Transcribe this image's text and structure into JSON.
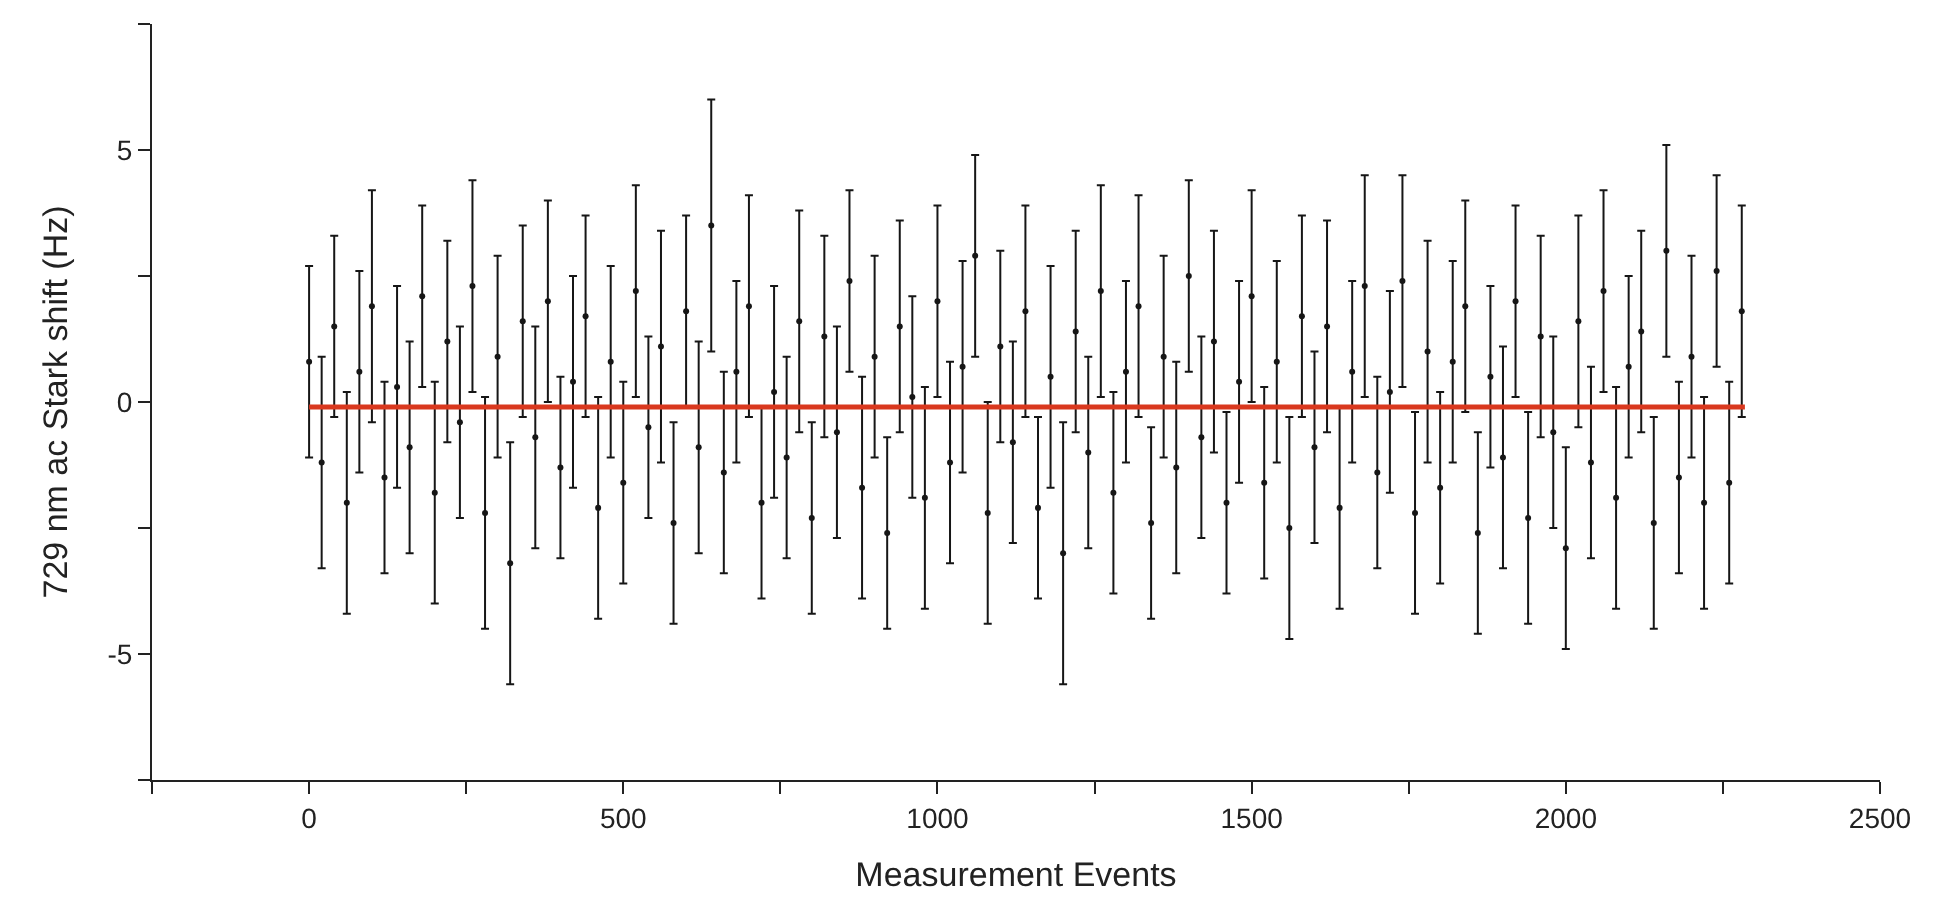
{
  "chart_data": {
    "type": "scatter",
    "xlabel": "Measurement Events",
    "ylabel": "729 nm ac Stark shift (Hz)",
    "xlim": [
      -250,
      2500
    ],
    "ylim": [
      -7.5,
      7.5
    ],
    "xticks": [
      {
        "value": -250,
        "label": null
      },
      0,
      {
        "value": 250,
        "label": null
      },
      500,
      {
        "value": 750,
        "label": null
      },
      1000,
      {
        "value": 1250,
        "label": null
      },
      1500,
      {
        "value": 1750,
        "label": null
      },
      2000,
      {
        "value": 2250,
        "label": null
      },
      2500
    ],
    "yticks": [
      {
        "value": -7.5,
        "label": null
      },
      -5,
      {
        "value": -2.5,
        "label": null
      },
      0,
      {
        "value": 2.5,
        "label": null
      },
      5,
      {
        "value": 7.5,
        "label": null
      }
    ],
    "series": [
      {
        "marker": "circle",
        "color": "#161616",
        "x": [
          0,
          20,
          40,
          60,
          80,
          100,
          120,
          140,
          160,
          180,
          200,
          220,
          240,
          260,
          280,
          300,
          320,
          340,
          360,
          380,
          400,
          420,
          440,
          460,
          480,
          500,
          520,
          540,
          560,
          580,
          600,
          620,
          640,
          660,
          680,
          700,
          720,
          740,
          760,
          780,
          800,
          820,
          840,
          860,
          880,
          900,
          920,
          940,
          960,
          980,
          1000,
          1020,
          1040,
          1060,
          1080,
          1100,
          1120,
          1140,
          1160,
          1180,
          1200,
          1220,
          1240,
          1260,
          1280,
          1300,
          1320,
          1340,
          1360,
          1380,
          1400,
          1420,
          1440,
          1460,
          1480,
          1500,
          1520,
          1540,
          1560,
          1580,
          1600,
          1620,
          1640,
          1660,
          1680,
          1700,
          1720,
          1740,
          1760,
          1780,
          1800,
          1820,
          1840,
          1860,
          1880,
          1900,
          1920,
          1940,
          1960,
          1980,
          2000,
          2020,
          2040,
          2060,
          2080,
          2100,
          2120,
          2140,
          2160,
          2180,
          2200,
          2220,
          2240,
          2260,
          2280
        ],
        "values": [
          0.8,
          -1.2,
          1.5,
          -2.0,
          0.6,
          1.9,
          -1.5,
          0.3,
          -0.9,
          2.1,
          -1.8,
          1.2,
          -0.4,
          2.3,
          -2.2,
          0.9,
          -3.2,
          1.6,
          -0.7,
          2.0,
          -1.3,
          0.4,
          1.7,
          -2.1,
          0.8,
          -1.6,
          2.2,
          -0.5,
          1.1,
          -2.4,
          1.8,
          -0.9,
          3.5,
          -1.4,
          0.6,
          1.9,
          -2.0,
          0.2,
          -1.1,
          1.6,
          -2.3,
          1.3,
          -0.6,
          2.4,
          -1.7,
          0.9,
          -2.6,
          1.5,
          0.1,
          -1.9,
          2.0,
          -1.2,
          0.7,
          2.9,
          -2.2,
          1.1,
          -0.8,
          1.8,
          -2.1,
          0.5,
          -3.0,
          1.4,
          -1.0,
          2.2,
          -1.8,
          0.6,
          1.9,
          -2.4,
          0.9,
          -1.3,
          2.5,
          -0.7,
          1.2,
          -2.0,
          0.4,
          2.1,
          -1.6,
          0.8,
          -2.5,
          1.7,
          -0.9,
          1.5,
          -2.1,
          0.6,
          2.3,
          -1.4,
          0.2,
          2.4,
          -2.2,
          1.0,
          -1.7,
          0.8,
          1.9,
          -2.6,
          0.5,
          -1.1,
          2.0,
          -2.3,
          1.3,
          -0.6,
          -2.9,
          1.6,
          -1.2,
          2.2,
          -1.9,
          0.7,
          1.4,
          -2.4,
          3.0,
          -1.5,
          0.9,
          -2.0,
          2.6,
          -1.6,
          1.8
        ],
        "errors": [
          1.9,
          2.1,
          1.8,
          2.2,
          2.0,
          2.3,
          1.9,
          2.0,
          2.1,
          1.8,
          2.2,
          2.0,
          1.9,
          2.1,
          2.3,
          2.0,
          2.4,
          1.9,
          2.2,
          2.0,
          1.8,
          2.1,
          2.0,
          2.2,
          1.9,
          2.0,
          2.1,
          1.8,
          2.3,
          2.0,
          1.9,
          2.1,
          2.5,
          2.0,
          1.8,
          2.2,
          1.9,
          2.1,
          2.0,
          2.2,
          1.9,
          2.0,
          2.1,
          1.8,
          2.2,
          2.0,
          1.9,
          2.1,
          2.0,
          2.2,
          1.9,
          2.0,
          2.1,
          2.0,
          2.2,
          1.9,
          2.0,
          2.1,
          1.8,
          2.2,
          2.6,
          2.0,
          1.9,
          2.1,
          2.0,
          1.8,
          2.2,
          1.9,
          2.0,
          2.1,
          1.9,
          2.0,
          2.2,
          1.8,
          2.0,
          2.1,
          1.9,
          2.0,
          2.2,
          2.0,
          1.9,
          2.1,
          2.0,
          1.8,
          2.2,
          1.9,
          2.0,
          2.1,
          2.0,
          2.2,
          1.9,
          2.0,
          2.1,
          2.0,
          1.8,
          2.2,
          1.9,
          2.1,
          2.0,
          1.9,
          2.0,
          2.1,
          1.9,
          2.0,
          2.2,
          1.8,
          2.0,
          2.1,
          2.1,
          1.9,
          2.0,
          2.1,
          1.9,
          2.0,
          2.1
        ]
      },
      {
        "type": "line",
        "color": "#d9381e",
        "line_style": "solid",
        "x": [
          0,
          2285
        ],
        "values": [
          -0.1,
          -0.1
        ]
      }
    ]
  }
}
